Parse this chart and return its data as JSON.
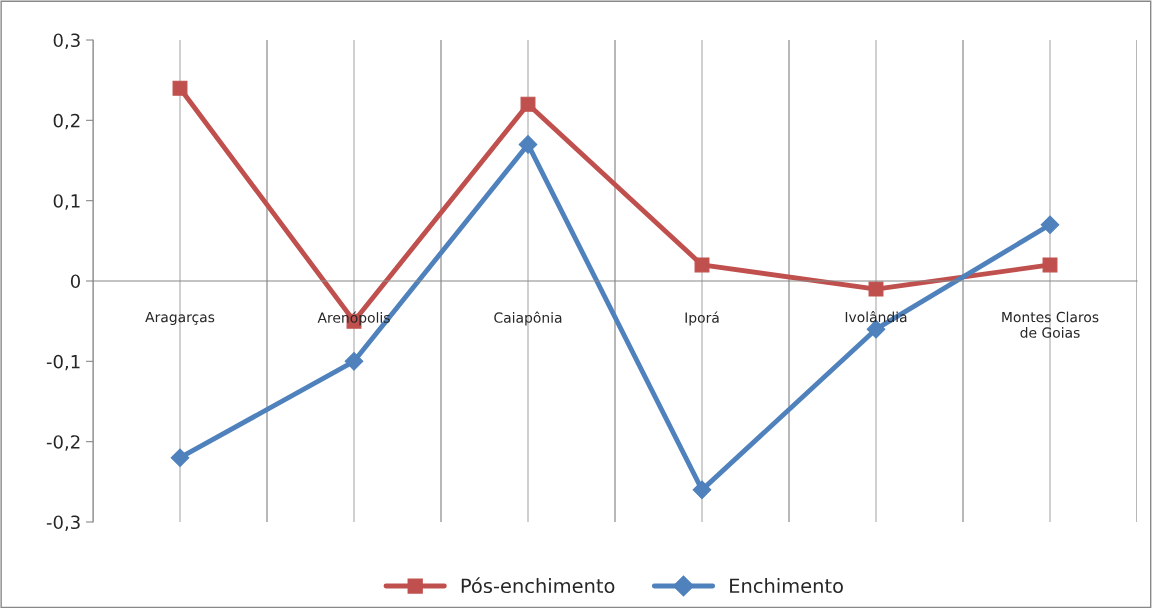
{
  "chart_data": {
    "type": "line",
    "categories": [
      "Aragarças",
      "Arenópolis",
      "Caiapônia",
      "Iporá",
      "Ivolândia",
      "Montes Claros de Goias"
    ],
    "series": [
      {
        "name": "Pós-enchimento",
        "color": "#c0504d",
        "marker": "square",
        "values": [
          0.24,
          -0.05,
          0.22,
          0.02,
          -0.01,
          0.02
        ]
      },
      {
        "name": "Enchimento",
        "color": "#4f81bd",
        "marker": "diamond",
        "values": [
          -0.22,
          -0.1,
          0.17,
          -0.26,
          -0.06,
          0.07
        ]
      }
    ],
    "ylim": [
      -0.3,
      0.3
    ],
    "yticks": [
      {
        "value": -0.3,
        "label": "-0,3"
      },
      {
        "value": -0.2,
        "label": "-0,2"
      },
      {
        "value": -0.1,
        "label": "-0,1"
      },
      0,
      {
        "value": 0.1,
        "label": "0,1"
      },
      {
        "value": 0.2,
        "label": "0,2"
      },
      {
        "value": 0.3,
        "label": "0,3"
      }
    ],
    "grid": "x",
    "legend": "bottom",
    "line_style": "solid"
  }
}
